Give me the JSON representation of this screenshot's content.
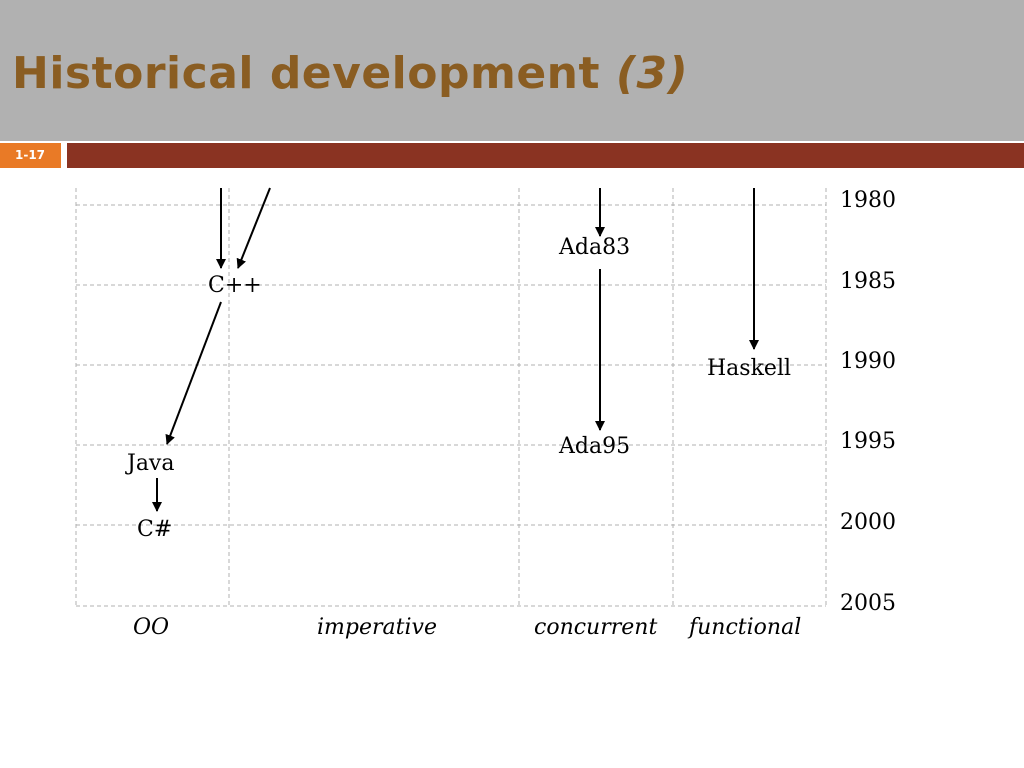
{
  "slide": {
    "title_main": "Historical development ",
    "title_paren": "(3)",
    "slide_number": "1-17"
  },
  "years": [
    "1980",
    "1985",
    "1990",
    "1995",
    "2000",
    "2005"
  ],
  "categories": [
    "OO",
    "imperative",
    "concurrent",
    "functional"
  ],
  "languages": {
    "cpp": "C++",
    "java": "Java",
    "csharp": "C#",
    "ada83": "Ada83",
    "ada95": "Ada95",
    "haskell": "Haskell"
  }
}
